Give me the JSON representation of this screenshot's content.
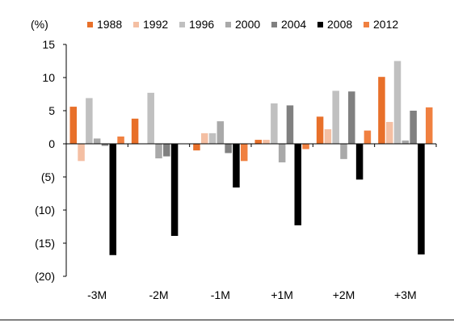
{
  "chart_data": {
    "type": "bar",
    "unit_label": "(%)",
    "categories": [
      "-3M",
      "-2M",
      "-1M",
      "+1M",
      "+2M",
      "+3M"
    ],
    "series": [
      {
        "name": "1988",
        "color": "#E8702A",
        "values": [
          5.6,
          3.8,
          -1.0,
          0.6,
          4.1,
          10.1
        ]
      },
      {
        "name": "1992",
        "color": "#F4BFA3",
        "values": [
          -2.6,
          0.0,
          1.6,
          0.6,
          2.2,
          3.3
        ]
      },
      {
        "name": "1996",
        "color": "#C0C0C0",
        "values": [
          6.9,
          7.7,
          1.6,
          6.1,
          8.0,
          12.5
        ]
      },
      {
        "name": "2000",
        "color": "#A9A9A9",
        "values": [
          0.8,
          -2.2,
          3.4,
          -2.8,
          -2.3,
          0.5
        ]
      },
      {
        "name": "2004",
        "color": "#808080",
        "values": [
          -0.3,
          -1.9,
          -1.4,
          5.8,
          7.9,
          5.0
        ]
      },
      {
        "name": "2008",
        "color": "#000000",
        "values": [
          -16.8,
          -13.9,
          -6.6,
          -12.3,
          -5.4,
          -16.7
        ]
      },
      {
        "name": "2012",
        "color": "#F08040",
        "values": [
          1.1,
          0.0,
          -2.6,
          -0.8,
          2.0,
          5.5
        ]
      }
    ],
    "yticks": [
      15,
      10,
      5,
      0,
      -5,
      -10,
      -15,
      -20
    ],
    "ytick_labels": [
      "15",
      "10",
      "5",
      "0",
      "(5)",
      "(10)",
      "(15)",
      "(20)"
    ],
    "ylim": [
      -20,
      15
    ],
    "legend_position": "top",
    "grid": false
  }
}
